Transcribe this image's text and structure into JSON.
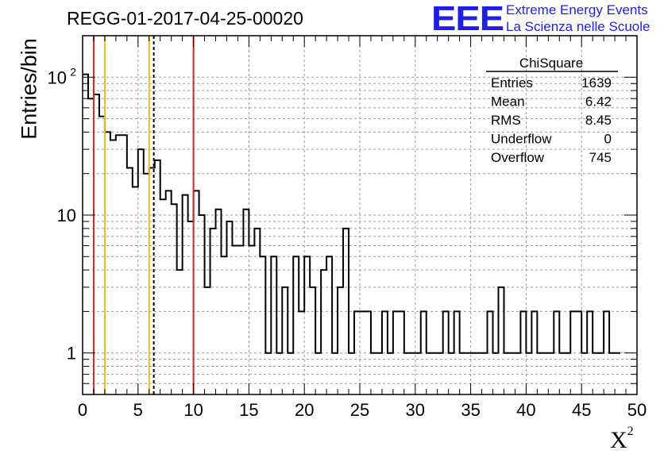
{
  "title": "REGG-01-2017-04-25-00020",
  "logo": {
    "mark": "EEE",
    "line1": "Extreme Energy Events",
    "line2": "La Scienza nelle Scuole",
    "color": "#1f1fe6"
  },
  "stats": {
    "title": "ChiSquare",
    "rows": [
      {
        "label": "Entries",
        "value": "1639"
      },
      {
        "label": "Mean",
        "value": "6.42"
      },
      {
        "label": "RMS",
        "value": "8.45"
      },
      {
        "label": "Underflow",
        "value": "0"
      },
      {
        "label": "Overflow",
        "value": "745"
      }
    ]
  },
  "chart_data": {
    "type": "bar",
    "style": "step-histogram",
    "ylabel": "Entries/bin",
    "xlabel": "X",
    "xlabel_sup": "2",
    "xlim": [
      0,
      50
    ],
    "ylim": [
      0.5,
      200
    ],
    "yscale": "log",
    "grid": true,
    "bin_width": 0.5,
    "x_ticks": [
      0,
      5,
      10,
      15,
      20,
      25,
      30,
      35,
      40,
      45,
      50
    ],
    "x_tick_labels": [
      "0",
      "5",
      "10",
      "15",
      "20",
      "25",
      "30",
      "35",
      "40",
      "45",
      "50"
    ],
    "y_ticks": [
      {
        "value": 1,
        "label": "1"
      },
      {
        "value": 10,
        "label": "10"
      },
      {
        "value": 100,
        "label": "10",
        "sup": "2"
      }
    ],
    "values": [
      105,
      70,
      75,
      52,
      40,
      35,
      38,
      38,
      22,
      16,
      30,
      20,
      22,
      25,
      13,
      15,
      12,
      4,
      14,
      9,
      15,
      10,
      3,
      8,
      11,
      5,
      9,
      6,
      6,
      11,
      6,
      8,
      5,
      1,
      5,
      1,
      3,
      1,
      5,
      2,
      5,
      3,
      1,
      4,
      5,
      1,
      3,
      8,
      1,
      2,
      2,
      2,
      1,
      1,
      2,
      1,
      2,
      2,
      1,
      1,
      1,
      2,
      1,
      1,
      1,
      2,
      1,
      2,
      1,
      1,
      1,
      1,
      1,
      2,
      1,
      3,
      1,
      1,
      1,
      2,
      1,
      2,
      1,
      1,
      1,
      2,
      1,
      1,
      2,
      2,
      1,
      2,
      1,
      1,
      2,
      1,
      1
    ],
    "vertical_lines": [
      {
        "x": 1.0,
        "color": "#dd2222",
        "style": "solid"
      },
      {
        "x": 2.0,
        "color": "#f2b81c",
        "style": "solid"
      },
      {
        "x": 6.0,
        "color": "#f2b81c",
        "style": "solid"
      },
      {
        "x": 6.42,
        "color": "#000000",
        "style": "dashed"
      },
      {
        "x": 10.0,
        "color": "#dd2222",
        "style": "solid"
      }
    ]
  }
}
